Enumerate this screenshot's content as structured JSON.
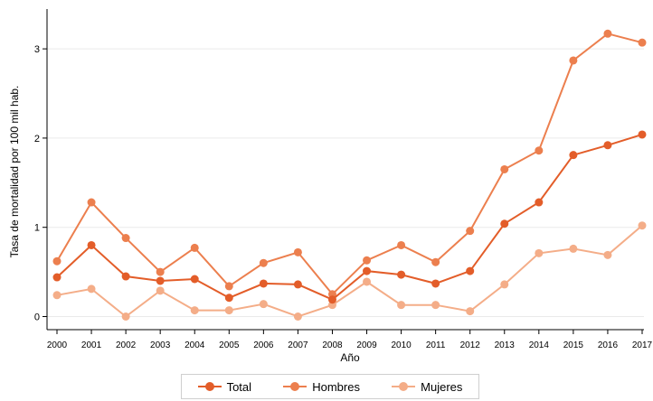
{
  "chart_data": {
    "type": "line",
    "title": "",
    "xlabel": "Año",
    "ylabel": "Tasa de mortalidad por 100 mil hab.",
    "x": [
      "2000",
      "2001",
      "2002",
      "2003",
      "2004",
      "2005",
      "2006",
      "2007",
      "2008",
      "2009",
      "2010",
      "2011",
      "2012",
      "2013",
      "2014",
      "2015",
      "2016",
      "2017"
    ],
    "yticks": [
      0,
      1,
      2,
      3
    ],
    "ylim": [
      -0.1,
      3.35
    ],
    "grid": true,
    "legend_position": "bottom",
    "series": [
      {
        "name": "Total",
        "color": "#e35d29",
        "values": [
          0.44,
          0.8,
          0.45,
          0.4,
          0.42,
          0.21,
          0.37,
          0.36,
          0.19,
          0.51,
          0.47,
          0.37,
          0.51,
          1.04,
          1.28,
          1.81,
          1.92,
          2.04
        ]
      },
      {
        "name": "Hombres",
        "color": "#ec7f4e",
        "values": [
          0.62,
          1.28,
          0.88,
          0.5,
          0.77,
          0.34,
          0.6,
          0.72,
          0.25,
          0.63,
          0.8,
          0.61,
          0.96,
          1.65,
          1.86,
          2.87,
          3.17,
          3.07
        ]
      },
      {
        "name": "Mujeres",
        "color": "#f4ad88",
        "values": [
          0.24,
          0.31,
          0.0,
          0.29,
          0.07,
          0.07,
          0.14,
          0.0,
          0.13,
          0.39,
          0.13,
          0.13,
          0.06,
          0.36,
          0.71,
          0.76,
          0.69,
          1.02
        ]
      }
    ]
  }
}
